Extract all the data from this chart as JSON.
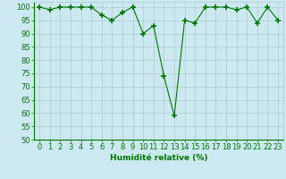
{
  "x": [
    0,
    1,
    2,
    3,
    4,
    5,
    6,
    7,
    8,
    9,
    10,
    11,
    12,
    13,
    14,
    15,
    16,
    17,
    18,
    19,
    20,
    21,
    22,
    23
  ],
  "y": [
    100,
    99,
    100,
    100,
    100,
    100,
    97,
    95,
    98,
    100,
    90,
    93,
    74,
    59,
    95,
    94,
    100,
    100,
    100,
    99,
    100,
    94,
    100,
    95
  ],
  "line_color": "#007700",
  "marker": "+",
  "marker_size": 4,
  "marker_lw": 1.2,
  "bg_color": "#cce8f0",
  "grid_color": "#aacccc",
  "xlabel": "Humidité relative (%)",
  "ylim": [
    50,
    102
  ],
  "xlim": [
    -0.5,
    23.5
  ],
  "yticks": [
    50,
    55,
    60,
    65,
    70,
    75,
    80,
    85,
    90,
    95,
    100
  ],
  "xticks": [
    0,
    1,
    2,
    3,
    4,
    5,
    6,
    7,
    8,
    9,
    10,
    11,
    12,
    13,
    14,
    15,
    16,
    17,
    18,
    19,
    20,
    21,
    22,
    23
  ],
  "xlabel_fontsize": 6.5,
  "tick_fontsize": 6
}
